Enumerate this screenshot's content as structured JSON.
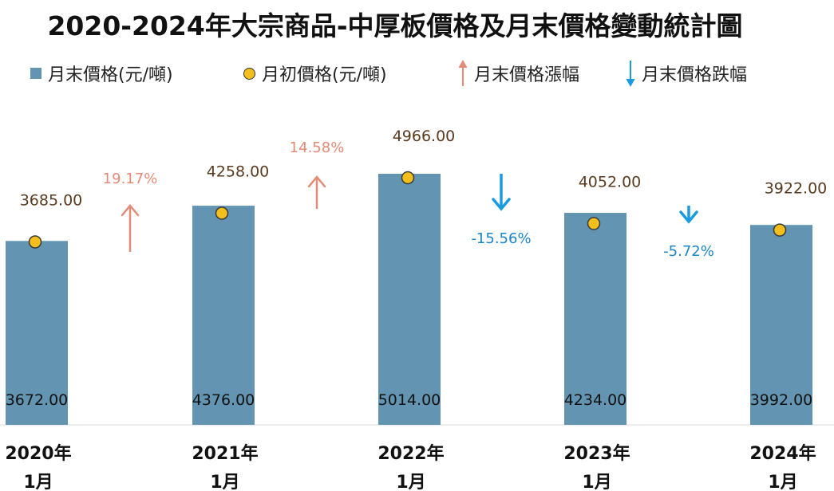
{
  "chart_data": {
    "type": "bar",
    "title": "2020-2024年大宗商品-中厚板價格及月末價格變動統計圖",
    "categories": [
      [
        "2020年",
        "1月"
      ],
      [
        "2021年",
        "1月"
      ],
      [
        "2022年",
        "1月"
      ],
      [
        "2023年",
        "1月"
      ],
      [
        "2024年",
        "1月"
      ]
    ],
    "series": [
      {
        "name": "月末價格(元/噸)",
        "kind": "bar",
        "color": "#6394b1",
        "values": [
          3672.0,
          4376.0,
          5014.0,
          4234.0,
          3992.0
        ],
        "labels": [
          "3672.00",
          "4376.00",
          "5014.00",
          "4234.00",
          "3992.00"
        ]
      },
      {
        "name": "月初價格(元/噸)",
        "kind": "point",
        "color": "#f2bf1d",
        "values": [
          3685.0,
          4258.0,
          4966.0,
          4052.0,
          3922.0
        ],
        "labels": [
          "3685.00",
          "4258.00",
          "4966.00",
          "4052.00",
          "3922.00"
        ]
      }
    ],
    "changes": [
      {
        "between": [
          0,
          1
        ],
        "direction": "up",
        "value": 19.17,
        "label": "19.17%"
      },
      {
        "between": [
          1,
          2
        ],
        "direction": "up",
        "value": 14.58,
        "label": "14.58%"
      },
      {
        "between": [
          2,
          3
        ],
        "direction": "down",
        "value": -15.56,
        "label": "-15.56%"
      },
      {
        "between": [
          3,
          4
        ],
        "direction": "down",
        "value": -5.72,
        "label": "-5.72%"
      }
    ],
    "legend": {
      "placement": "top",
      "items": [
        {
          "label": "月末價格(元/噸)",
          "symbol": "square",
          "color": "#6394b1"
        },
        {
          "label": "月初價格(元/噸)",
          "symbol": "circle",
          "color": "#f2bf1d"
        },
        {
          "label": "月末價格漲幅",
          "symbol": "arrow-up",
          "color": "#e38b75"
        },
        {
          "label": "月末價格跌幅",
          "symbol": "arrow-down",
          "color": "#1a9be0"
        }
      ]
    },
    "xlabel": "",
    "ylabel": "",
    "ylim": [
      0,
      5500
    ],
    "grid": false
  }
}
